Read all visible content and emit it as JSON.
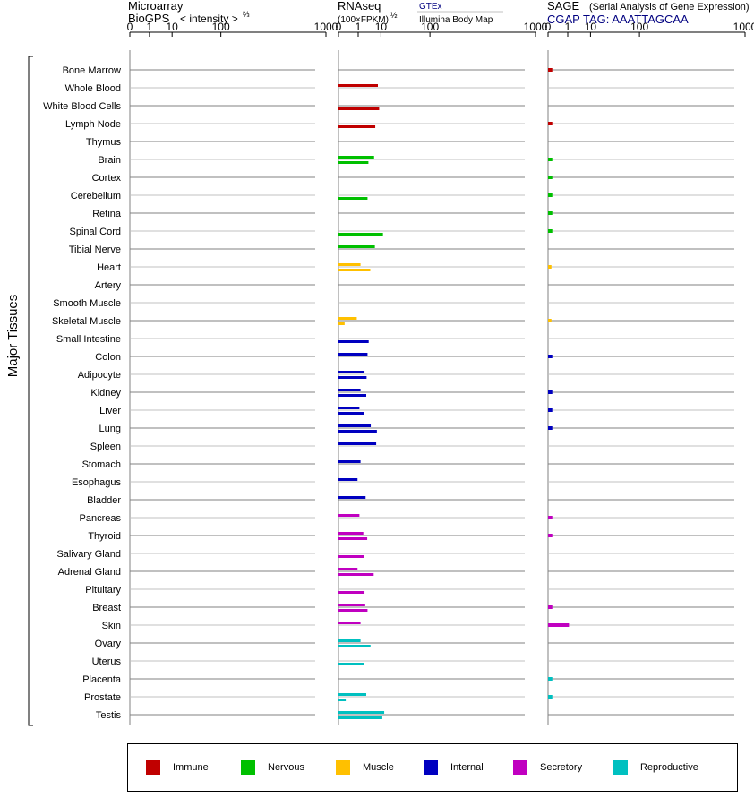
{
  "header": {
    "microarray": {
      "title": "Microarray",
      "subtitle": "BioGPS",
      "intensity_label": "< intensity >",
      "exponent": "⅔"
    },
    "rnaseq": {
      "title": "RNAseq",
      "subtitle": "(100×FPKM)",
      "exponent": "½",
      "source1": "GTEx",
      "source2": "Illumina Body Map"
    },
    "sage": {
      "title": "SAGE",
      "subtitle": "(Serial Analysis of Gene Expression)",
      "tag": "CGAP TAG: AAATTAGCAA"
    }
  },
  "section_label": "Major Tissues",
  "legend": [
    {
      "key": "immune",
      "label": "Immune",
      "color": "#c00000"
    },
    {
      "key": "nervous",
      "label": "Nervous",
      "color": "#00c000"
    },
    {
      "key": "muscle",
      "label": "Muscle",
      "color": "#ffc000"
    },
    {
      "key": "internal",
      "label": "Internal",
      "color": "#0000c0"
    },
    {
      "key": "secretory",
      "label": "Secretory",
      "color": "#c000c0"
    },
    {
      "key": "reproductive",
      "label": "Reproductive",
      "color": "#00c0c0"
    }
  ],
  "chart_data": {
    "type": "bar",
    "axis_ticks": [
      "0",
      "1",
      "10",
      "100",
      "1000"
    ],
    "panels": [
      "Microarray",
      "RNAseq",
      "SAGE"
    ],
    "categories": [
      "Bone Marrow",
      "Whole Blood",
      "White Blood Cells",
      "Lymph Node",
      "Thymus",
      "Brain",
      "Cortex",
      "Cerebellum",
      "Retina",
      "Spinal Cord",
      "Tibial Nerve",
      "Heart",
      "Artery",
      "Smooth Muscle",
      "Skeletal Muscle",
      "Small Intestine",
      "Colon",
      "Adipocyte",
      "Kidney",
      "Liver",
      "Lung",
      "Spleen",
      "Stomach",
      "Esophagus",
      "Bladder",
      "Pancreas",
      "Thyroid",
      "Salivary Gland",
      "Adrenal Gland",
      "Pituitary",
      "Breast",
      "Skin",
      "Ovary",
      "Uterus",
      "Placenta",
      "Prostate",
      "Testis"
    ],
    "tissue_group": [
      "immune",
      "immune",
      "immune",
      "immune",
      "immune",
      "nervous",
      "nervous",
      "nervous",
      "nervous",
      "nervous",
      "nervous",
      "muscle",
      "muscle",
      "muscle",
      "muscle",
      "internal",
      "internal",
      "internal",
      "internal",
      "internal",
      "internal",
      "internal",
      "internal",
      "internal",
      "internal",
      "secretory",
      "secretory",
      "secretory",
      "secretory",
      "secretory",
      "secretory",
      "secretory",
      "reproductive",
      "reproductive",
      "reproductive",
      "reproductive",
      "reproductive"
    ],
    "series": [
      {
        "name": "GTEx",
        "values": [
          null,
          8,
          null,
          null,
          null,
          5.9,
          null,
          null,
          null,
          null,
          6.3,
          1.4,
          null,
          null,
          0.8,
          null,
          3.2,
          2.3,
          1.4,
          1.2,
          4.4,
          7,
          1.4,
          0.9,
          2.6,
          1.2,
          2,
          null,
          0.9,
          null,
          2.5,
          1.4,
          1.4,
          null,
          null,
          2.8,
          12.5
        ]
      },
      {
        "name": "Illumina Body Map",
        "values": [
          null,
          null,
          8.8,
          6.5,
          null,
          3.5,
          null,
          3.2,
          null,
          11.5,
          null,
          4.2,
          null,
          null,
          0.03,
          3.6,
          null,
          2.9,
          2.8,
          2.1,
          7.4,
          null,
          null,
          null,
          null,
          null,
          3.1,
          2.1,
          5.7,
          2.3,
          3.2,
          null,
          4.3,
          2.1,
          null,
          0.05,
          11
        ]
      },
      {
        "name": "SAGE",
        "values": [
          0.01,
          null,
          null,
          0.01,
          null,
          0.01,
          0.01,
          0.01,
          0.01,
          0.01,
          null,
          0.005,
          null,
          null,
          0.005,
          null,
          0.01,
          null,
          0.01,
          0.01,
          0.01,
          null,
          null,
          null,
          null,
          0.01,
          0.01,
          null,
          null,
          null,
          0.01,
          1.2,
          null,
          null,
          0.01,
          0.01,
          null
        ]
      }
    ]
  }
}
